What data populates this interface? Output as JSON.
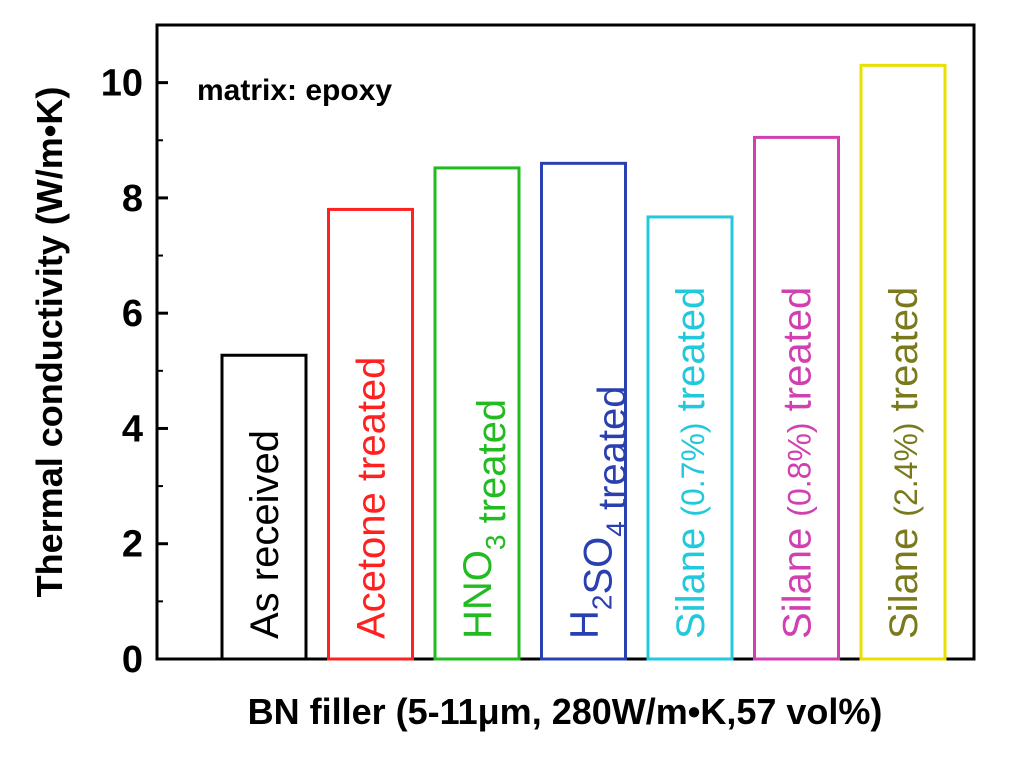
{
  "chart_data": {
    "type": "bar",
    "xlabel": "BN filler (5-11μm, 280W/m•K,57 vol%)",
    "ylabel": "Thermal conductivity (W/m•K)",
    "annotation": "matrix: epoxy",
    "ylim": [
      0,
      11
    ],
    "yticks": [
      "0",
      "2",
      "4",
      "6",
      "8",
      "10"
    ],
    "grid": false,
    "bars": [
      {
        "color": "#000000",
        "value": 5.27,
        "label": [
          {
            "text": "As received"
          }
        ]
      },
      {
        "color": "#ff2020",
        "value": 7.8,
        "label": [
          {
            "text": "Acetone treated"
          }
        ]
      },
      {
        "color": "#22bb22",
        "value": 8.52,
        "label": [
          {
            "text": "HNO"
          },
          {
            "text": "3",
            "sub": true
          },
          {
            "text": " treated"
          }
        ]
      },
      {
        "color": "#2a3fb0",
        "value": 8.6,
        "label": [
          {
            "text": "H"
          },
          {
            "text": "2",
            "sub": true
          },
          {
            "text": "SO"
          },
          {
            "text": "4",
            "sub": true
          },
          {
            "text": " treated"
          }
        ]
      },
      {
        "color": "#22c8dc",
        "value": 7.67,
        "label": [
          {
            "text": "Silane "
          },
          {
            "text": "(0.7%)",
            "small": true
          },
          {
            "text": " treated"
          }
        ]
      },
      {
        "color": "#d040b0",
        "value": 9.05,
        "label": [
          {
            "text": "Silane "
          },
          {
            "text": "(0.8%)",
            "small": true
          },
          {
            "text": " treated"
          }
        ]
      },
      {
        "color": "#e8e000",
        "textColor": "#7a7a1c",
        "value": 10.3,
        "label": [
          {
            "text": "Silane "
          },
          {
            "text": "(2.4%)",
            "small": true
          },
          {
            "text": " treated"
          }
        ]
      }
    ]
  }
}
